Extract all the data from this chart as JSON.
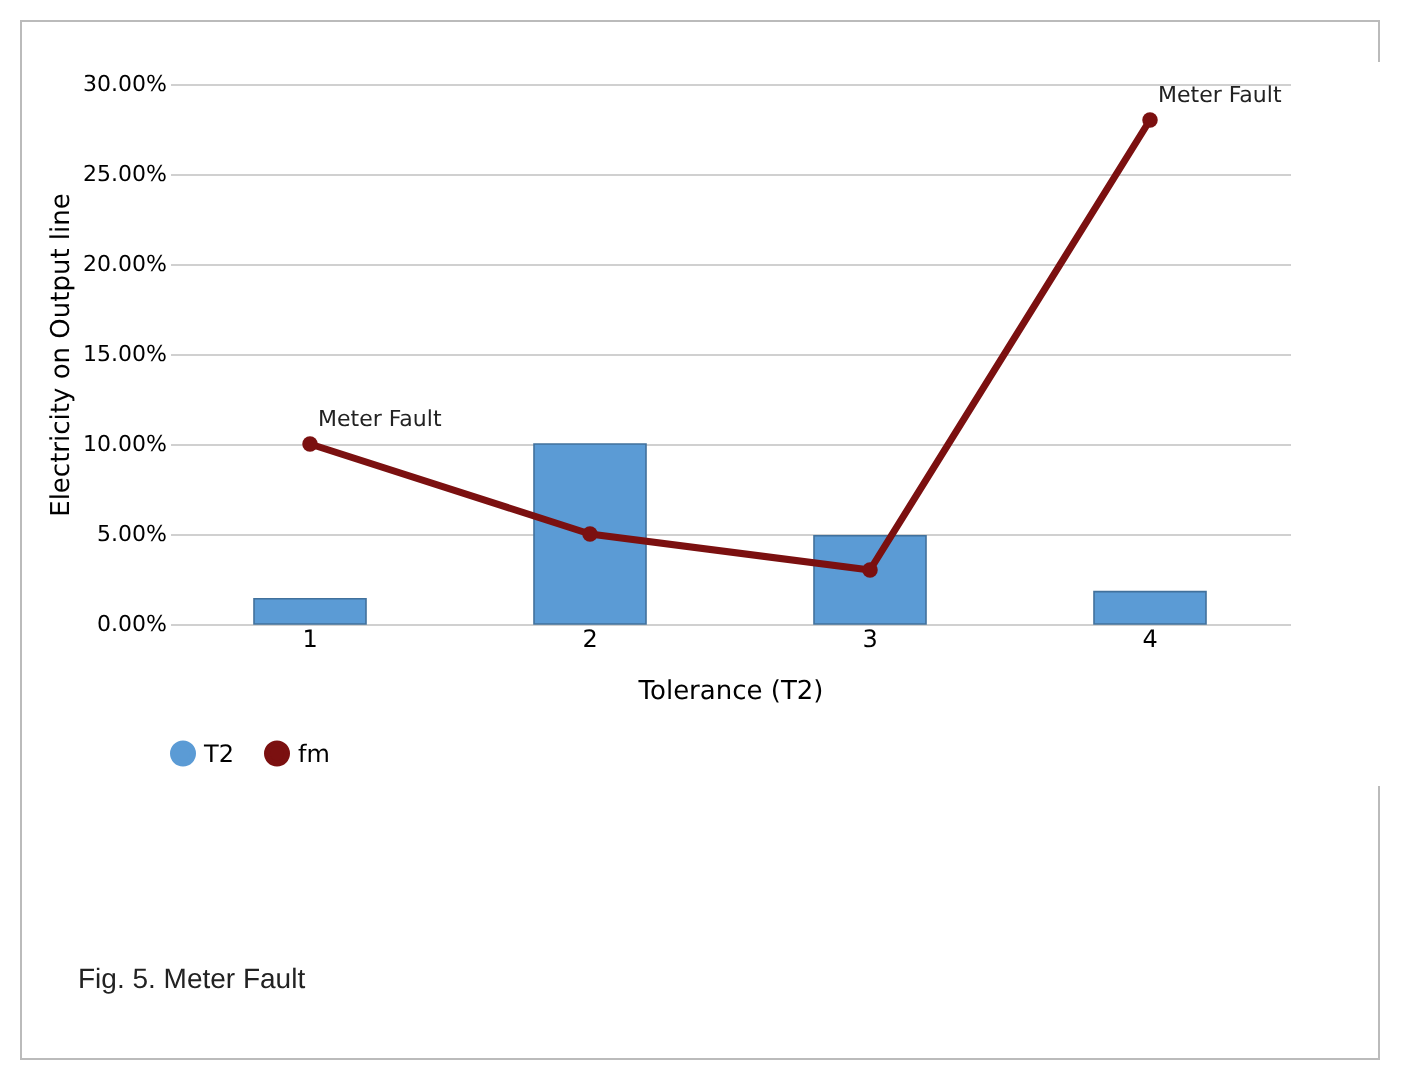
{
  "chart_data": {
    "type": "bar",
    "xlabel": "Tolerance   (T2)",
    "ylabel": "Electricity on Output line",
    "categories": [
      "1",
      "2",
      "3",
      "4"
    ],
    "series": [
      {
        "name": "T2",
        "color": "#5b9bd5",
        "values": [
          1.4,
          10,
          4.9,
          1.8
        ]
      },
      {
        "name": "fm",
        "type": "line",
        "color": "#7b1010",
        "marker": "circle",
        "values": [
          10,
          5,
          3,
          28
        ]
      }
    ],
    "ylim": [
      0,
      30
    ],
    "yticks": [
      {
        "value": 0,
        "label": "0.00%"
      },
      {
        "value": 5,
        "label": "5.00%"
      },
      {
        "value": 10,
        "label": "10.00%"
      },
      {
        "value": 15,
        "label": "15.00%"
      },
      {
        "value": 20,
        "label": "20.00%"
      },
      {
        "value": 25,
        "label": "25.00%"
      },
      {
        "value": 30,
        "label": "30.00%"
      }
    ],
    "grid": "y",
    "legend": "bottom",
    "annotations": [
      {
        "text": "Meter Fault",
        "x": "1",
        "y": 10
      },
      {
        "text": "Meter Fault",
        "x": "4",
        "y": 28
      },
      "Fig. 5. Meter Fault"
    ]
  }
}
